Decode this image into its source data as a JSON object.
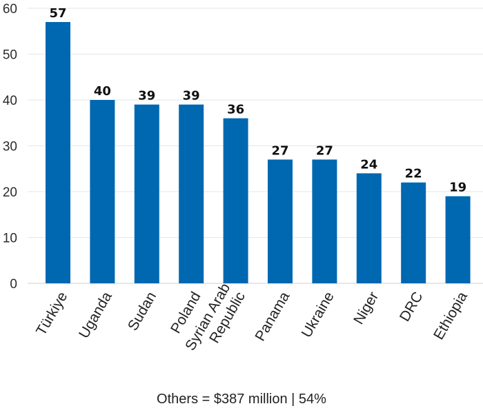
{
  "chart_data": {
    "type": "bar",
    "categories": [
      "Türkiye",
      "Uganda",
      "Sudan",
      "Poland",
      [
        "Syrian Arab",
        "Republic"
      ],
      "Panama",
      "Ukraine",
      "Niger",
      "DRC",
      "Ethiopia"
    ],
    "values": [
      57,
      40,
      39,
      39,
      36,
      27,
      27,
      24,
      22,
      19
    ],
    "ylim": [
      0,
      60
    ],
    "yticks": [
      0,
      10,
      20,
      30,
      40,
      50,
      60
    ],
    "title": "",
    "xlabel": "",
    "ylabel": "",
    "grid": true,
    "bar_color": "#0067B1",
    "grid_color": "#e6e6e6"
  },
  "footer_note": "Others = $387 million | 54%"
}
